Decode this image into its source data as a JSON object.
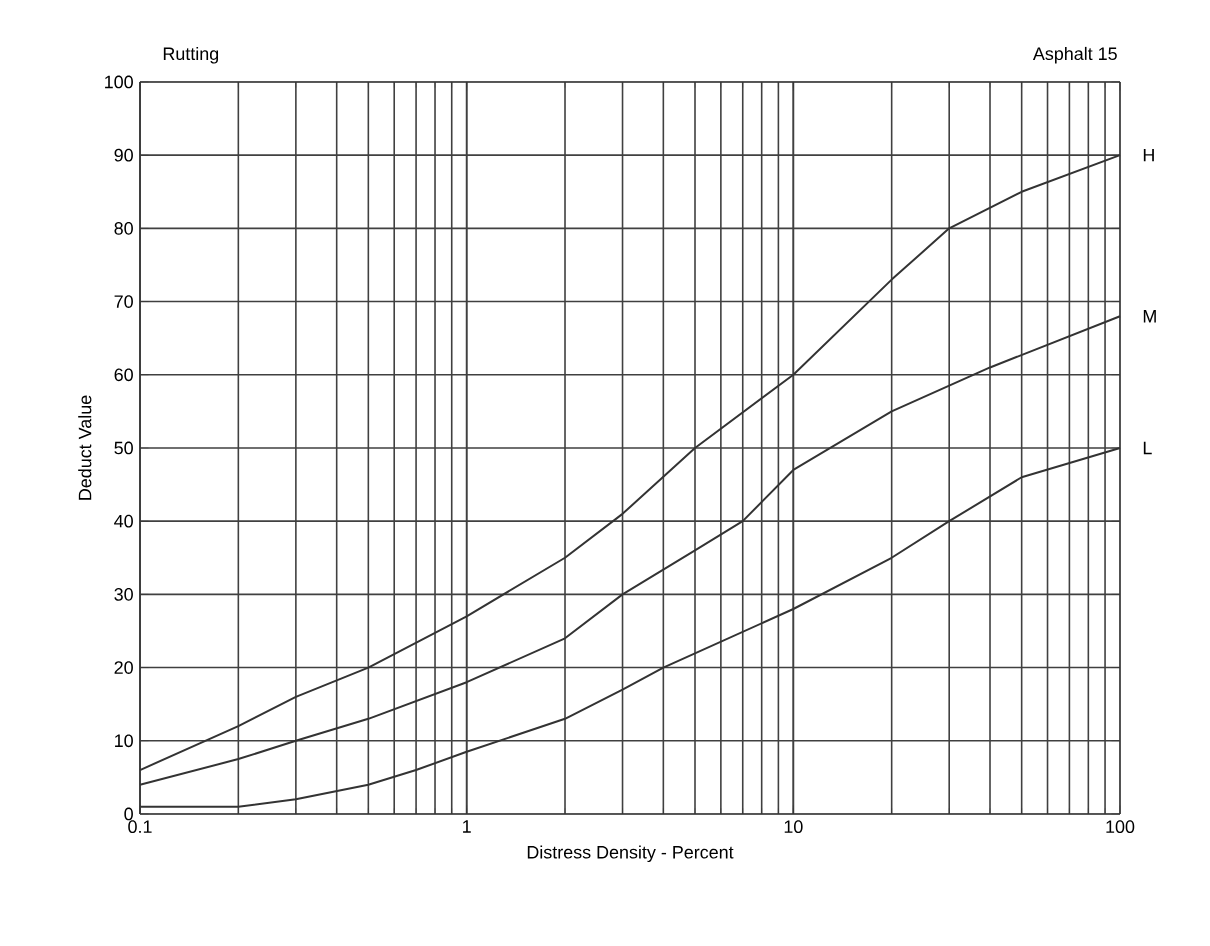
{
  "chart_data": {
    "type": "line",
    "title": "Rutting",
    "subtitle": "Asphalt 15",
    "xlabel": "Distress Density - Percent",
    "ylabel": "Deduct Value",
    "log": "x",
    "xlim": [
      0.1,
      100
    ],
    "ylim": [
      0,
      100
    ],
    "xticks": [
      0.1,
      1,
      10,
      100
    ],
    "yticks": [
      0,
      10,
      20,
      30,
      40,
      50,
      60,
      70,
      80,
      90,
      100
    ],
    "grid": true,
    "legend": "right",
    "marker": "none",
    "line_style": "solid",
    "series": [
      {
        "name": "H",
        "color": "#333333",
        "x": [
          0.1,
          0.2,
          0.3,
          0.5,
          1,
          2,
          3,
          5,
          10,
          20,
          30,
          50,
          100
        ],
        "values": [
          6,
          12,
          16,
          20,
          27,
          35,
          41,
          50,
          60,
          73,
          80,
          85,
          90
        ]
      },
      {
        "name": "M",
        "color": "#333333",
        "x": [
          0.1,
          0.2,
          0.3,
          0.5,
          1,
          2,
          3,
          5,
          7,
          10,
          20,
          40,
          100
        ],
        "values": [
          4,
          7.5,
          10,
          13,
          18,
          24,
          30,
          36,
          40,
          47,
          55,
          61,
          68
        ]
      },
      {
        "name": "L",
        "color": "#333333",
        "x": [
          0.1,
          0.2,
          0.3,
          0.5,
          0.7,
          1,
          2,
          3,
          4,
          10,
          20,
          30,
          50,
          100
        ],
        "values": [
          1,
          1,
          2,
          4,
          6,
          8.5,
          13,
          17,
          20,
          28,
          35,
          40,
          46,
          50
        ]
      }
    ]
  }
}
